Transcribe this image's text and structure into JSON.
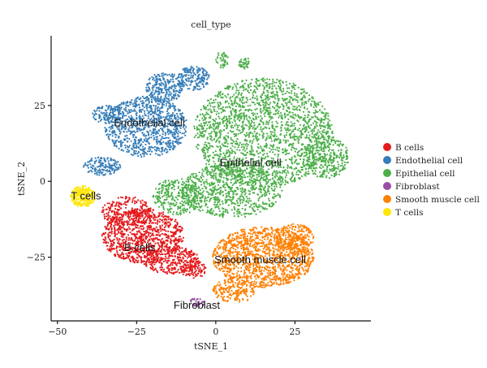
{
  "chart_data": {
    "type": "scatter",
    "title": "cell_type",
    "xlabel": "tSNE_1",
    "ylabel": "tSNE_2",
    "xlim": [
      -52,
      49
    ],
    "ylim": [
      -46,
      48
    ],
    "xticks": [
      -50,
      -25,
      0,
      25
    ],
    "yticks": [
      -25,
      0,
      25
    ],
    "grid": false,
    "legend_position": "right",
    "series": [
      {
        "name": "B cells",
        "color": "#e41a1c",
        "regions": [
          {
            "cx": -23,
            "cy": -18,
            "rx": 13,
            "ry": 9,
            "n": 900
          },
          {
            "cx": -14,
            "cy": -26,
            "rx": 9,
            "ry": 4.5,
            "n": 300
          },
          {
            "cx": -28,
            "cy": -10,
            "rx": 8,
            "ry": 5,
            "n": 250
          },
          {
            "cx": -7,
            "cy": -29,
            "rx": 4,
            "ry": 3,
            "n": 100
          }
        ]
      },
      {
        "name": "Endothelial cell",
        "color": "#377eb8",
        "regions": [
          {
            "cx": -22,
            "cy": 18,
            "rx": 13,
            "ry": 10,
            "n": 900
          },
          {
            "cx": -16,
            "cy": 31,
            "rx": 6,
            "ry": 5,
            "n": 250
          },
          {
            "cx": -7,
            "cy": 34,
            "rx": 5,
            "ry": 4,
            "n": 180
          },
          {
            "cx": -36,
            "cy": 5,
            "rx": 6,
            "ry": 3,
            "n": 150
          },
          {
            "cx": -34,
            "cy": 22,
            "rx": 5,
            "ry": 3,
            "n": 120
          }
        ]
      },
      {
        "name": "Epithelial cell",
        "color": "#4daf4a",
        "regions": [
          {
            "cx": 15,
            "cy": 16,
            "rx": 22,
            "ry": 18,
            "n": 2000
          },
          {
            "cx": 5,
            "cy": -3,
            "rx": 16,
            "ry": 9,
            "n": 800
          },
          {
            "cx": -12,
            "cy": -5,
            "rx": 8,
            "ry": 6,
            "n": 300
          },
          {
            "cx": 35,
            "cy": 8,
            "rx": 7,
            "ry": 7,
            "n": 300
          },
          {
            "cx": 2,
            "cy": 40,
            "rx": 2,
            "ry": 3,
            "n": 40
          },
          {
            "cx": 9,
            "cy": 39,
            "rx": 2,
            "ry": 2,
            "n": 40
          }
        ]
      },
      {
        "name": "Fibroblast",
        "color": "#984ea3",
        "regions": [
          {
            "cx": -6,
            "cy": -40,
            "rx": 2.5,
            "ry": 1.5,
            "n": 30
          }
        ]
      },
      {
        "name": "Smooth muscle cell",
        "color": "#ff7f00",
        "regions": [
          {
            "cx": 15,
            "cy": -25,
            "rx": 16,
            "ry": 10,
            "n": 1300
          },
          {
            "cx": 6,
            "cy": -36,
            "rx": 7,
            "ry": 4,
            "n": 200
          },
          {
            "cx": 25,
            "cy": -19,
            "rx": 6,
            "ry": 5,
            "n": 200
          }
        ]
      },
      {
        "name": "T cells",
        "color": "#ffe600",
        "regions": [
          {
            "cx": -42,
            "cy": -5,
            "rx": 4,
            "ry": 3.5,
            "n": 250
          }
        ]
      }
    ],
    "annotations": [
      {
        "text": "Endothelial cell",
        "x": -21,
        "y": 19
      },
      {
        "text": "Epithelial cell",
        "x": 11,
        "y": 6
      },
      {
        "text": "T cells",
        "x": -41,
        "y": -5
      },
      {
        "text": "B cells",
        "x": -24,
        "y": -22
      },
      {
        "text": "Smooth muscle cell",
        "x": 14,
        "y": -26
      },
      {
        "text": "Fibroblast",
        "x": -6,
        "y": -41
      }
    ]
  }
}
